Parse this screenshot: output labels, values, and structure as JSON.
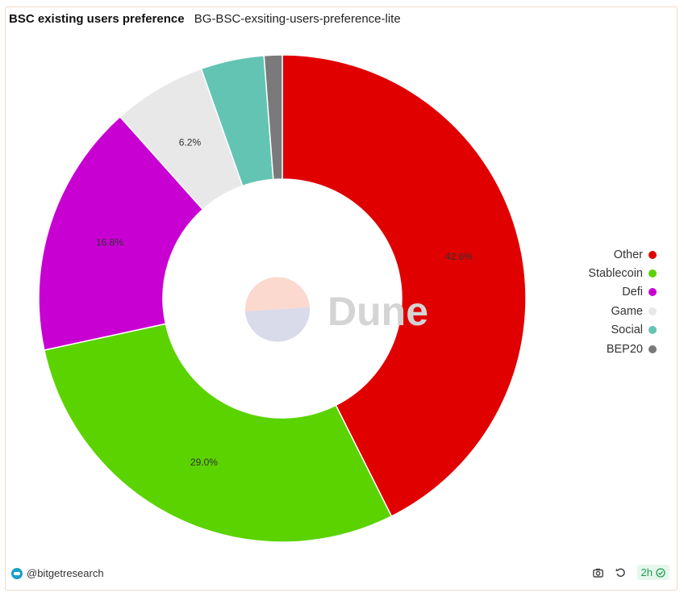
{
  "header": {
    "title": "BSC existing users preference",
    "subtitle": "BG-BSC-exsiting-users-preference-lite"
  },
  "watermark": {
    "text": "Dune"
  },
  "chart_data": {
    "type": "pie",
    "categories": [
      "Other",
      "Stablecoin",
      "Defi",
      "Game",
      "Social",
      "BEP20"
    ],
    "values": [
      42.6,
      29.0,
      16.8,
      6.2,
      4.2,
      1.2
    ],
    "labels": [
      "42.6%",
      "29.0%",
      "16.8%",
      "6.2%",
      "",
      ""
    ],
    "colors": [
      "#e00000",
      "#5ad300",
      "#c800d2",
      "#e8e8e8",
      "#63c4b3",
      "#7a7a7a"
    ],
    "donut": true,
    "legend_position": "right"
  },
  "footer": {
    "author": "@bitgetresearch",
    "refresh_badge": "2h",
    "icons": [
      "camera-icon",
      "refresh-icon",
      "check-circle-icon"
    ]
  }
}
